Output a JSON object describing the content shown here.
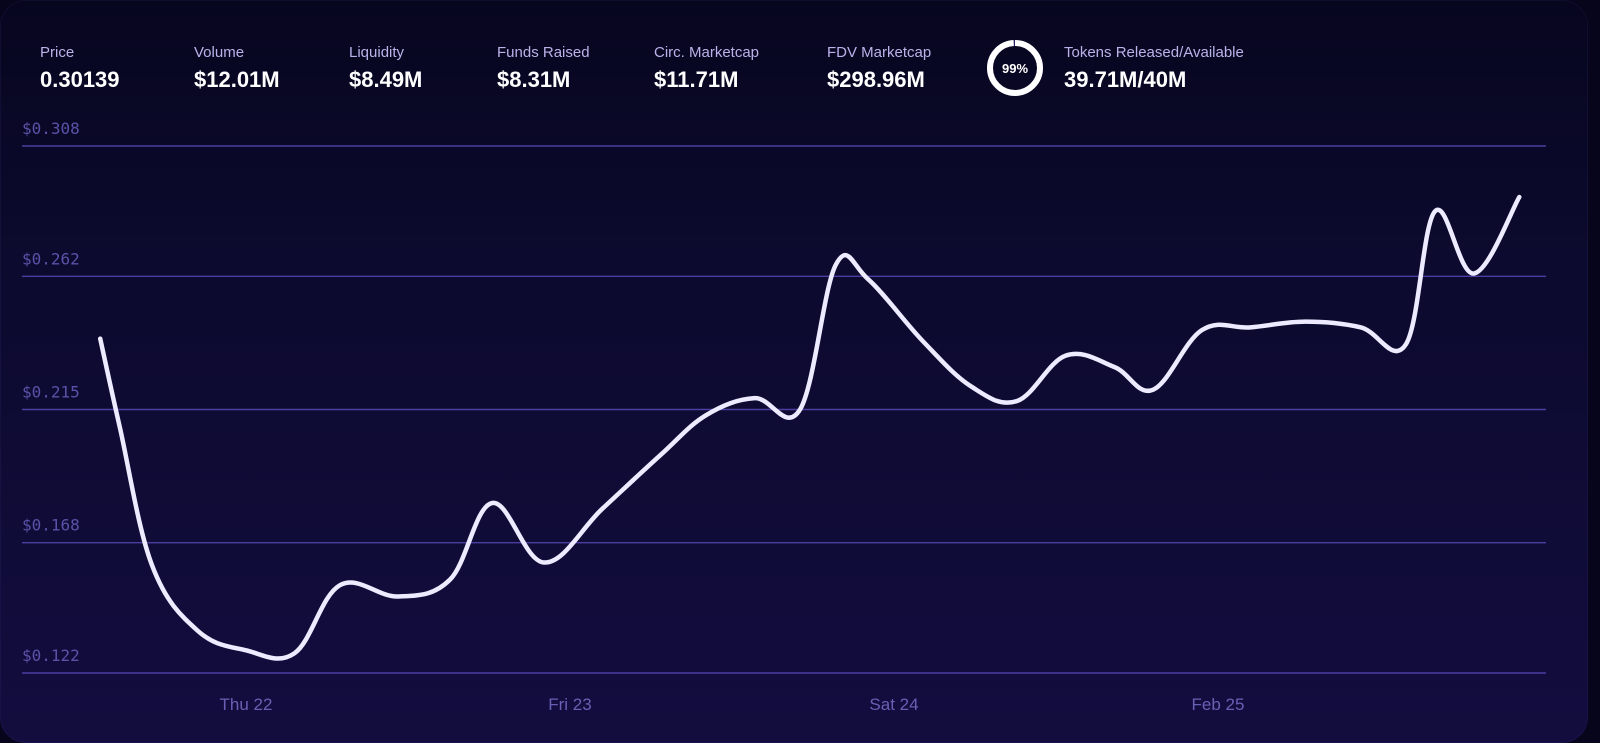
{
  "stats": [
    {
      "label": "Price",
      "value": "0.30139"
    },
    {
      "label": "Volume",
      "value": "$12.01M"
    },
    {
      "label": "Liquidity",
      "value": "$8.49M"
    },
    {
      "label": "Funds Raised",
      "value": "$8.31M"
    },
    {
      "label": "Circ. Marketcap",
      "value": "$11.71M"
    },
    {
      "label": "FDV Marketcap",
      "value": "$298.96M"
    }
  ],
  "tokens": {
    "percent_label": "99%",
    "percent": 0.99,
    "label": "Tokens Released/Available",
    "value": "39.71M/40M"
  },
  "colors": {
    "line": "#ecebff",
    "grid": "#4a3fa0",
    "ring": "#ffffff",
    "background": "#0c0a2e"
  },
  "chart_data": {
    "type": "line",
    "title": "",
    "xlabel": "",
    "ylabel": "",
    "ylim": [
      0.122,
      0.308
    ],
    "grid": true,
    "y_ticks": [
      {
        "label": "$0.308",
        "value": 0.308
      },
      {
        "label": "$0.262",
        "value": 0.262
      },
      {
        "label": "$0.215",
        "value": 0.215
      },
      {
        "label": "$0.168",
        "value": 0.168
      },
      {
        "label": "$0.122",
        "value": 0.122
      }
    ],
    "x_ticks": [
      {
        "label": "Thu 22",
        "x": 0.43
      },
      {
        "label": "Fri 23",
        "x": 1.43
      },
      {
        "label": "Sat 24",
        "x": 2.43
      },
      {
        "label": "Feb 25",
        "x": 3.43
      }
    ],
    "series": [
      {
        "values": [
          {
            "x": -0.02,
            "y": 0.24
          },
          {
            "x": 0.04,
            "y": 0.209
          },
          {
            "x": 0.14,
            "y": 0.16
          },
          {
            "x": 0.28,
            "y": 0.137
          },
          {
            "x": 0.43,
            "y": 0.13
          },
          {
            "x": 0.58,
            "y": 0.129
          },
          {
            "x": 0.72,
            "y": 0.153
          },
          {
            "x": 0.9,
            "y": 0.149
          },
          {
            "x": 1.06,
            "y": 0.155
          },
          {
            "x": 1.19,
            "y": 0.182
          },
          {
            "x": 1.35,
            "y": 0.161
          },
          {
            "x": 1.53,
            "y": 0.18
          },
          {
            "x": 1.71,
            "y": 0.199
          },
          {
            "x": 1.85,
            "y": 0.213
          },
          {
            "x": 2.0,
            "y": 0.219
          },
          {
            "x": 2.14,
            "y": 0.215
          },
          {
            "x": 2.25,
            "y": 0.266
          },
          {
            "x": 2.35,
            "y": 0.261
          },
          {
            "x": 2.52,
            "y": 0.239
          },
          {
            "x": 2.67,
            "y": 0.223
          },
          {
            "x": 2.81,
            "y": 0.218
          },
          {
            "x": 2.96,
            "y": 0.234
          },
          {
            "x": 3.11,
            "y": 0.23
          },
          {
            "x": 3.23,
            "y": 0.222
          },
          {
            "x": 3.38,
            "y": 0.243
          },
          {
            "x": 3.53,
            "y": 0.244
          },
          {
            "x": 3.7,
            "y": 0.246
          },
          {
            "x": 3.87,
            "y": 0.244
          },
          {
            "x": 4.01,
            "y": 0.238
          },
          {
            "x": 4.1,
            "y": 0.285
          },
          {
            "x": 4.22,
            "y": 0.263
          },
          {
            "x": 4.36,
            "y": 0.29
          }
        ]
      }
    ]
  }
}
